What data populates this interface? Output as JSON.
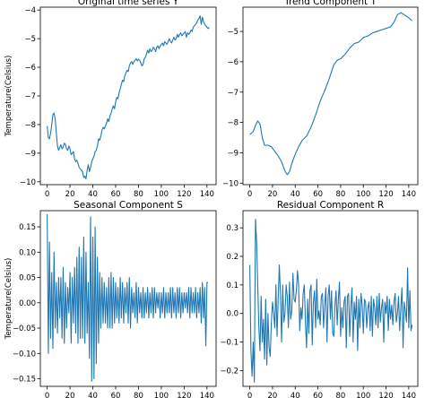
{
  "chart_data": [
    {
      "type": "line",
      "title": "Original time series Y",
      "ylabel": "Temperature(Celsius)",
      "xlim": [
        -6,
        148
      ],
      "ylim": [
        -10.1,
        -3.9
      ],
      "xticks": [
        0,
        20,
        40,
        60,
        80,
        100,
        120,
        140
      ],
      "yticks": [
        -10,
        -9,
        -8,
        -7,
        -6,
        -5,
        -4
      ],
      "color": "#1f77b4",
      "x_step": 1,
      "values": [
        -8.05,
        -8.45,
        -8.5,
        -8.3,
        -8.0,
        -7.65,
        -7.6,
        -7.8,
        -8.3,
        -8.75,
        -8.9,
        -8.8,
        -8.7,
        -8.85,
        -8.8,
        -8.65,
        -8.7,
        -8.85,
        -8.9,
        -8.75,
        -8.85,
        -9.05,
        -9.0,
        -8.95,
        -9.2,
        -9.3,
        -9.25,
        -9.35,
        -9.5,
        -9.55,
        -9.6,
        -9.65,
        -9.85,
        -9.8,
        -9.9,
        -9.6,
        -9.4,
        -9.65,
        -9.5,
        -9.3,
        -9.2,
        -9.1,
        -8.95,
        -8.9,
        -8.75,
        -8.5,
        -8.55,
        -8.4,
        -8.2,
        -8.1,
        -8.15,
        -8.05,
        -7.95,
        -7.8,
        -7.9,
        -7.7,
        -7.6,
        -7.45,
        -7.35,
        -7.45,
        -7.2,
        -7.05,
        -7.1,
        -6.9,
        -6.75,
        -6.6,
        -6.45,
        -6.5,
        -6.3,
        -6.2,
        -6.1,
        -6.15,
        -5.95,
        -5.85,
        -5.8,
        -5.9,
        -5.8,
        -5.75,
        -5.7,
        -5.78,
        -5.72,
        -5.75,
        -5.85,
        -5.95,
        -5.9,
        -5.7,
        -5.65,
        -5.55,
        -5.4,
        -5.5,
        -5.35,
        -5.45,
        -5.4,
        -5.3,
        -5.35,
        -5.45,
        -5.3,
        -5.25,
        -5.35,
        -5.25,
        -5.2,
        -5.15,
        -5.25,
        -5.1,
        -5.15,
        -5.2,
        -5.1,
        -5.0,
        -5.1,
        -5.15,
        -5.05,
        -4.95,
        -5.05,
        -5.0,
        -4.85,
        -4.95,
        -4.85,
        -4.8,
        -4.9,
        -4.85,
        -4.8,
        -4.75,
        -4.95,
        -4.8,
        -4.85,
        -4.8,
        -4.7,
        -4.75,
        -4.6,
        -4.55,
        -4.5,
        -4.45,
        -4.35,
        -4.3,
        -4.2,
        -4.5,
        -4.25,
        -4.4,
        -4.5,
        -4.55,
        -4.6,
        -4.65,
        -4.6
      ]
    },
    {
      "type": "line",
      "title": "Trend Component T",
      "ylabel": "",
      "xlim": [
        -6,
        148
      ],
      "ylim": [
        -10.05,
        -4.2
      ],
      "xticks": [
        0,
        20,
        40,
        60,
        80,
        100,
        120,
        140
      ],
      "yticks": [
        -10,
        -9,
        -8,
        -7,
        -6,
        -5
      ],
      "color": "#1f77b4",
      "points": [
        [
          0,
          -8.4
        ],
        [
          3,
          -8.3
        ],
        [
          5,
          -8.1
        ],
        [
          7,
          -7.95
        ],
        [
          9,
          -8.05
        ],
        [
          11,
          -8.5
        ],
        [
          13,
          -8.75
        ],
        [
          16,
          -8.75
        ],
        [
          19,
          -8.8
        ],
        [
          22,
          -8.95
        ],
        [
          25,
          -9.1
        ],
        [
          28,
          -9.3
        ],
        [
          31,
          -9.6
        ],
        [
          33,
          -9.72
        ],
        [
          35,
          -9.62
        ],
        [
          37,
          -9.35
        ],
        [
          40,
          -9.05
        ],
        [
          43,
          -8.8
        ],
        [
          46,
          -8.6
        ],
        [
          50,
          -8.45
        ],
        [
          54,
          -8.15
        ],
        [
          58,
          -7.75
        ],
        [
          62,
          -7.3
        ],
        [
          66,
          -6.95
        ],
        [
          70,
          -6.55
        ],
        [
          74,
          -6.1
        ],
        [
          77,
          -5.95
        ],
        [
          80,
          -5.9
        ],
        [
          84,
          -5.75
        ],
        [
          88,
          -5.55
        ],
        [
          92,
          -5.4
        ],
        [
          96,
          -5.35
        ],
        [
          100,
          -5.2
        ],
        [
          104,
          -5.15
        ],
        [
          108,
          -5.05
        ],
        [
          112,
          -5.0
        ],
        [
          116,
          -4.95
        ],
        [
          120,
          -4.9
        ],
        [
          124,
          -4.85
        ],
        [
          127,
          -4.7
        ],
        [
          130,
          -4.45
        ],
        [
          133,
          -4.38
        ],
        [
          136,
          -4.45
        ],
        [
          140,
          -4.55
        ],
        [
          143,
          -4.65
        ]
      ]
    },
    {
      "type": "line",
      "title": "Seasonal Component S",
      "ylabel": "Temperature(Celsius)",
      "xlim": [
        -6,
        148
      ],
      "ylim": [
        -0.165,
        0.182
      ],
      "xticks": [
        0,
        20,
        40,
        60,
        80,
        100,
        120,
        140
      ],
      "yticks": [
        -0.15,
        -0.1,
        -0.05,
        0.0,
        0.05,
        0.1,
        0.15
      ],
      "ytick_labels": [
        "−0.15",
        "−0.10",
        "−0.05",
        "0.00",
        "0.05",
        "0.10",
        "0.15"
      ],
      "color": "#1f77b4",
      "x_step": 1,
      "values": [
        0.175,
        -0.1,
        0.12,
        -0.07,
        0.06,
        -0.09,
        0.1,
        -0.05,
        0.04,
        -0.06,
        0.05,
        -0.03,
        0.05,
        -0.07,
        0.07,
        -0.08,
        0.04,
        -0.05,
        0.03,
        -0.02,
        0.06,
        -0.08,
        0.05,
        -0.04,
        0.07,
        -0.06,
        0.09,
        -0.08,
        0.11,
        -0.07,
        0.09,
        -0.07,
        0.13,
        -0.08,
        0.1,
        -0.06,
        0.04,
        -0.11,
        0.17,
        -0.155,
        0.13,
        -0.15,
        0.15,
        -0.12,
        0.09,
        -0.08,
        0.06,
        -0.05,
        0.05,
        -0.04,
        0.04,
        -0.04,
        0.03,
        -0.05,
        0.05,
        -0.05,
        0.06,
        -0.05,
        0.05,
        -0.04,
        0.04,
        -0.03,
        0.03,
        -0.04,
        0.05,
        -0.03,
        0.04,
        -0.04,
        0.03,
        -0.02,
        0.04,
        -0.04,
        0.05,
        -0.05,
        0.03,
        -0.02,
        0.02,
        -0.03,
        0.04,
        -0.04,
        0.03,
        -0.02,
        0.02,
        -0.03,
        0.03,
        -0.03,
        0.02,
        -0.02,
        0.03,
        -0.03,
        0.02,
        -0.02,
        0.03,
        -0.03,
        0.03,
        -0.02,
        0.02,
        -0.01,
        0.02,
        -0.03,
        0.02,
        -0.02,
        0.03,
        -0.03,
        0.02,
        -0.02,
        0.02,
        -0.02,
        0.03,
        -0.03,
        0.03,
        -0.02,
        0.02,
        -0.03,
        0.03,
        -0.02,
        0.03,
        -0.03,
        0.02,
        -0.02,
        0.02,
        -0.01,
        0.02,
        -0.02,
        0.03,
        -0.03,
        0.03,
        -0.02,
        0.02,
        -0.02,
        0.03,
        -0.03,
        0.02,
        -0.02,
        0.03,
        -0.04,
        0.04,
        -0.03,
        0.03,
        -0.085,
        0.04,
        0.04
      ]
    },
    {
      "type": "line",
      "title": "Residual Component R",
      "ylabel": "",
      "xlim": [
        -6,
        148
      ],
      "ylim": [
        -0.255,
        0.36
      ],
      "xticks": [
        0,
        20,
        40,
        60,
        80,
        100,
        120,
        140
      ],
      "yticks": [
        -0.2,
        -0.1,
        0.0,
        0.1,
        0.2,
        0.3
      ],
      "ytick_labels": [
        "−0.2",
        "−0.1",
        "0.0",
        "0.1",
        "0.2",
        "0.3"
      ],
      "color": "#1f77b4",
      "x_step": 1,
      "values": [
        0.17,
        -0.13,
        -0.22,
        -0.1,
        -0.24,
        0.33,
        0.25,
        0.1,
        -0.05,
        -0.13,
        0.06,
        -0.1,
        -0.02,
        -0.16,
        0.05,
        -0.18,
        0.0,
        -0.12,
        -0.15,
        -0.03,
        0.04,
        0.0,
        -0.05,
        0.1,
        -0.08,
        0.05,
        0.17,
        0.07,
        -0.1,
        0.1,
        -0.03,
        0.0,
        0.1,
        0.06,
        -0.05,
        0.11,
        -0.02,
        0.01,
        0.14,
        0.05,
        0.04,
        0.08,
        0.15,
        0.1,
        -0.06,
        0.02,
        -0.02,
        0.07,
        0.1,
        -0.03,
        -0.12,
        0.05,
        -0.07,
        0.08,
        0.1,
        -0.11,
        0.04,
        0.08,
        -0.05,
        0.12,
        -0.02,
        0.01,
        -0.04,
        0.06,
        0.07,
        -0.05,
        0.03,
        0.09,
        -0.1,
        0.06,
        0.1,
        -0.02,
        0.08,
        -0.07,
        -0.08,
        0.03,
        0.08,
        -0.04,
        0.05,
        0.11,
        -0.08,
        0.02,
        -0.05,
        0.04,
        0.06,
        -0.12,
        0.06,
        0.07,
        -0.08,
        0.02,
        0.09,
        -0.1,
        0.04,
        -0.02,
        0.06,
        -0.13,
        0.05,
        -0.05,
        0.07,
        0.03,
        -0.07,
        0.05,
        0.04,
        -0.05,
        0.02,
        0.04,
        -0.06,
        0.06,
        -0.08,
        0.05,
        0.02,
        -0.04,
        0.06,
        -0.05,
        0.07,
        -0.03,
        0.02,
        0.05,
        -0.1,
        0.04,
        0.0,
        0.06,
        -0.06,
        0.05,
        -0.02,
        0.03,
        -0.04,
        0.04,
        0.07,
        -0.03,
        0.0,
        0.06,
        -0.06,
        0.02,
        0.09,
        -0.12,
        0.04,
        0.01,
        -0.03,
        0.16,
        -0.05,
        0.08,
        -0.06,
        -0.04
      ]
    }
  ]
}
